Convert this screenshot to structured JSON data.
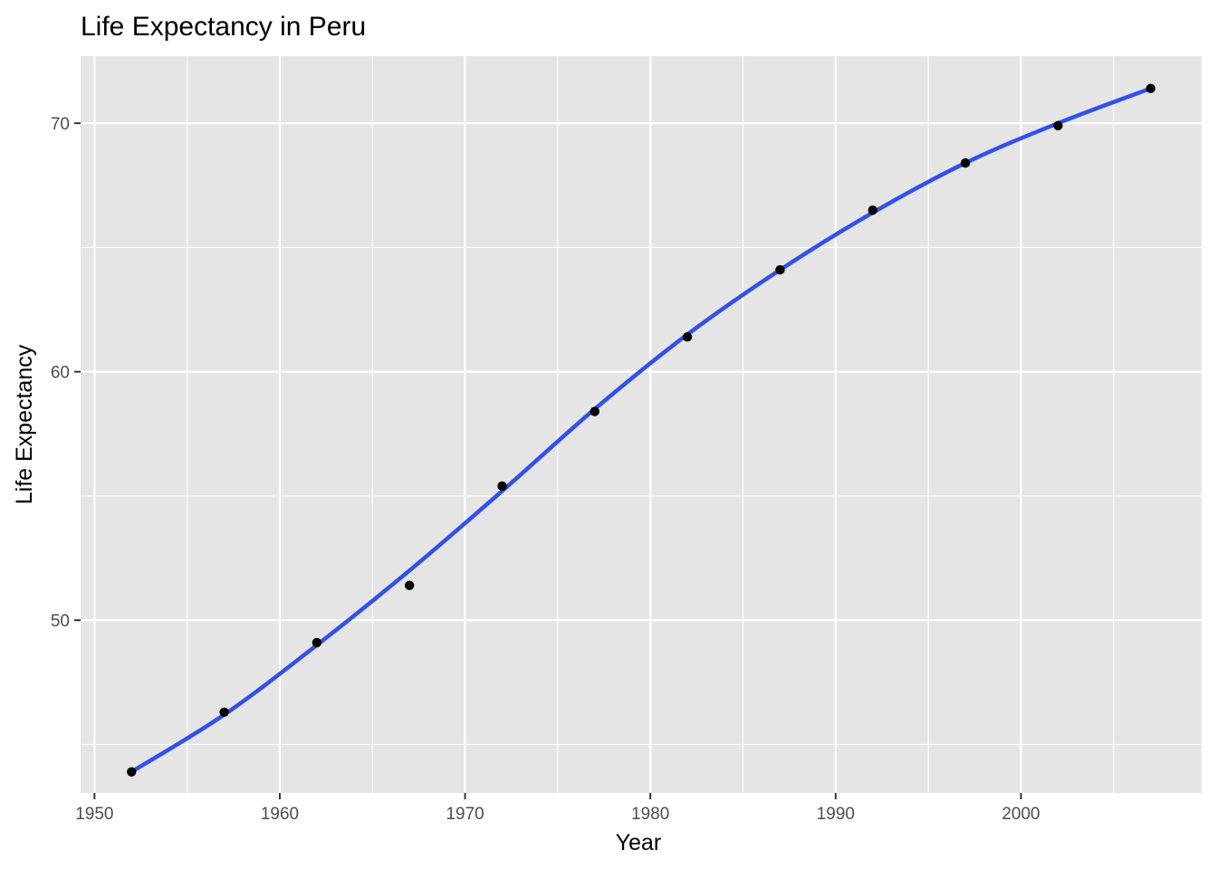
{
  "chart_data": {
    "type": "line",
    "title": "Life Expectancy in Peru",
    "xlabel": "Year",
    "ylabel": "Life Expectancy",
    "xlim": [
      1949.25,
      2009.75
    ],
    "ylim": [
      43.05,
      72.7
    ],
    "x_ticks": [
      1950,
      1960,
      1970,
      1980,
      1990,
      2000
    ],
    "x_minor_ticks": [
      1955,
      1965,
      1975,
      1985,
      1995,
      2005
    ],
    "y_ticks": [
      50,
      60,
      70
    ],
    "y_minor_ticks": [
      45,
      55,
      65
    ],
    "grid": true,
    "legend": "none",
    "colors": {
      "panel": "#e5e5e5",
      "grid": "#ffffff",
      "points": "#000000",
      "smooth_line": "#3050f0",
      "tick_label": "#4d4d4d"
    },
    "series": [
      {
        "kind": "points",
        "x": [
          1952,
          1957,
          1962,
          1967,
          1972,
          1977,
          1982,
          1987,
          1992,
          1997,
          2002,
          2007
        ],
        "y": [
          43.9,
          46.3,
          49.1,
          51.4,
          55.4,
          58.4,
          61.4,
          64.1,
          66.5,
          68.4,
          69.9,
          71.4
        ]
      },
      {
        "kind": "smooth",
        "x": [
          1952,
          1957,
          1962,
          1967,
          1972,
          1977,
          1982,
          1987,
          1992,
          1997,
          2002,
          2007
        ],
        "y": [
          43.9,
          46.2,
          49.0,
          52.0,
          55.2,
          58.5,
          61.5,
          64.1,
          66.4,
          68.4,
          70.0,
          71.4
        ]
      }
    ]
  }
}
